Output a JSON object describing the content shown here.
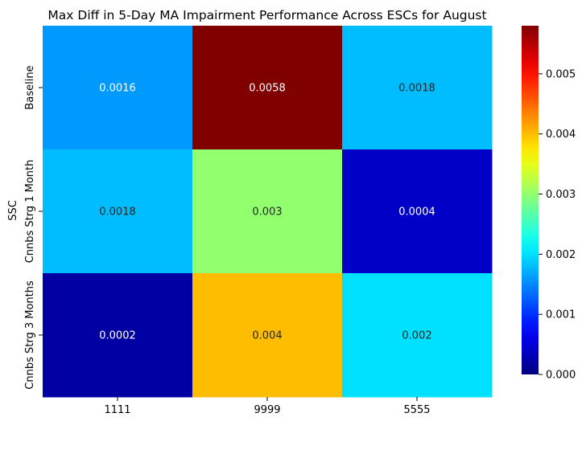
{
  "chart_data": {
    "type": "heatmap",
    "title": "Max Diff in 5-Day MA Impairment Performance Across ESCs for August",
    "xlabel": "",
    "ylabel": "SSC",
    "x_categories": [
      "1111",
      "9999",
      "5555"
    ],
    "y_categories": [
      "Baseline",
      "Cnnbs Strg 1 Month",
      "Cnnbs Strg 3 Months"
    ],
    "values": [
      [
        0.0016,
        0.0058,
        0.0018
      ],
      [
        0.0018,
        0.003,
        0.0004
      ],
      [
        0.0002,
        0.004,
        0.002
      ]
    ],
    "annotations": [
      [
        "0.0016",
        "0.0058",
        "0.0018"
      ],
      [
        "0.0018",
        "0.003",
        "0.0004"
      ],
      [
        "0.0002",
        "0.004",
        "0.002"
      ]
    ],
    "colormap": "jet",
    "color_range": [
      0,
      0.0058
    ],
    "colorbar": {
      "ticks": [
        0,
        0.001,
        0.002,
        0.003,
        0.004,
        0.005
      ],
      "tick_labels": [
        "0.000",
        "0.001",
        "0.002",
        "0.003",
        "0.004",
        "0.005"
      ]
    },
    "grid": false,
    "legend": "none"
  }
}
